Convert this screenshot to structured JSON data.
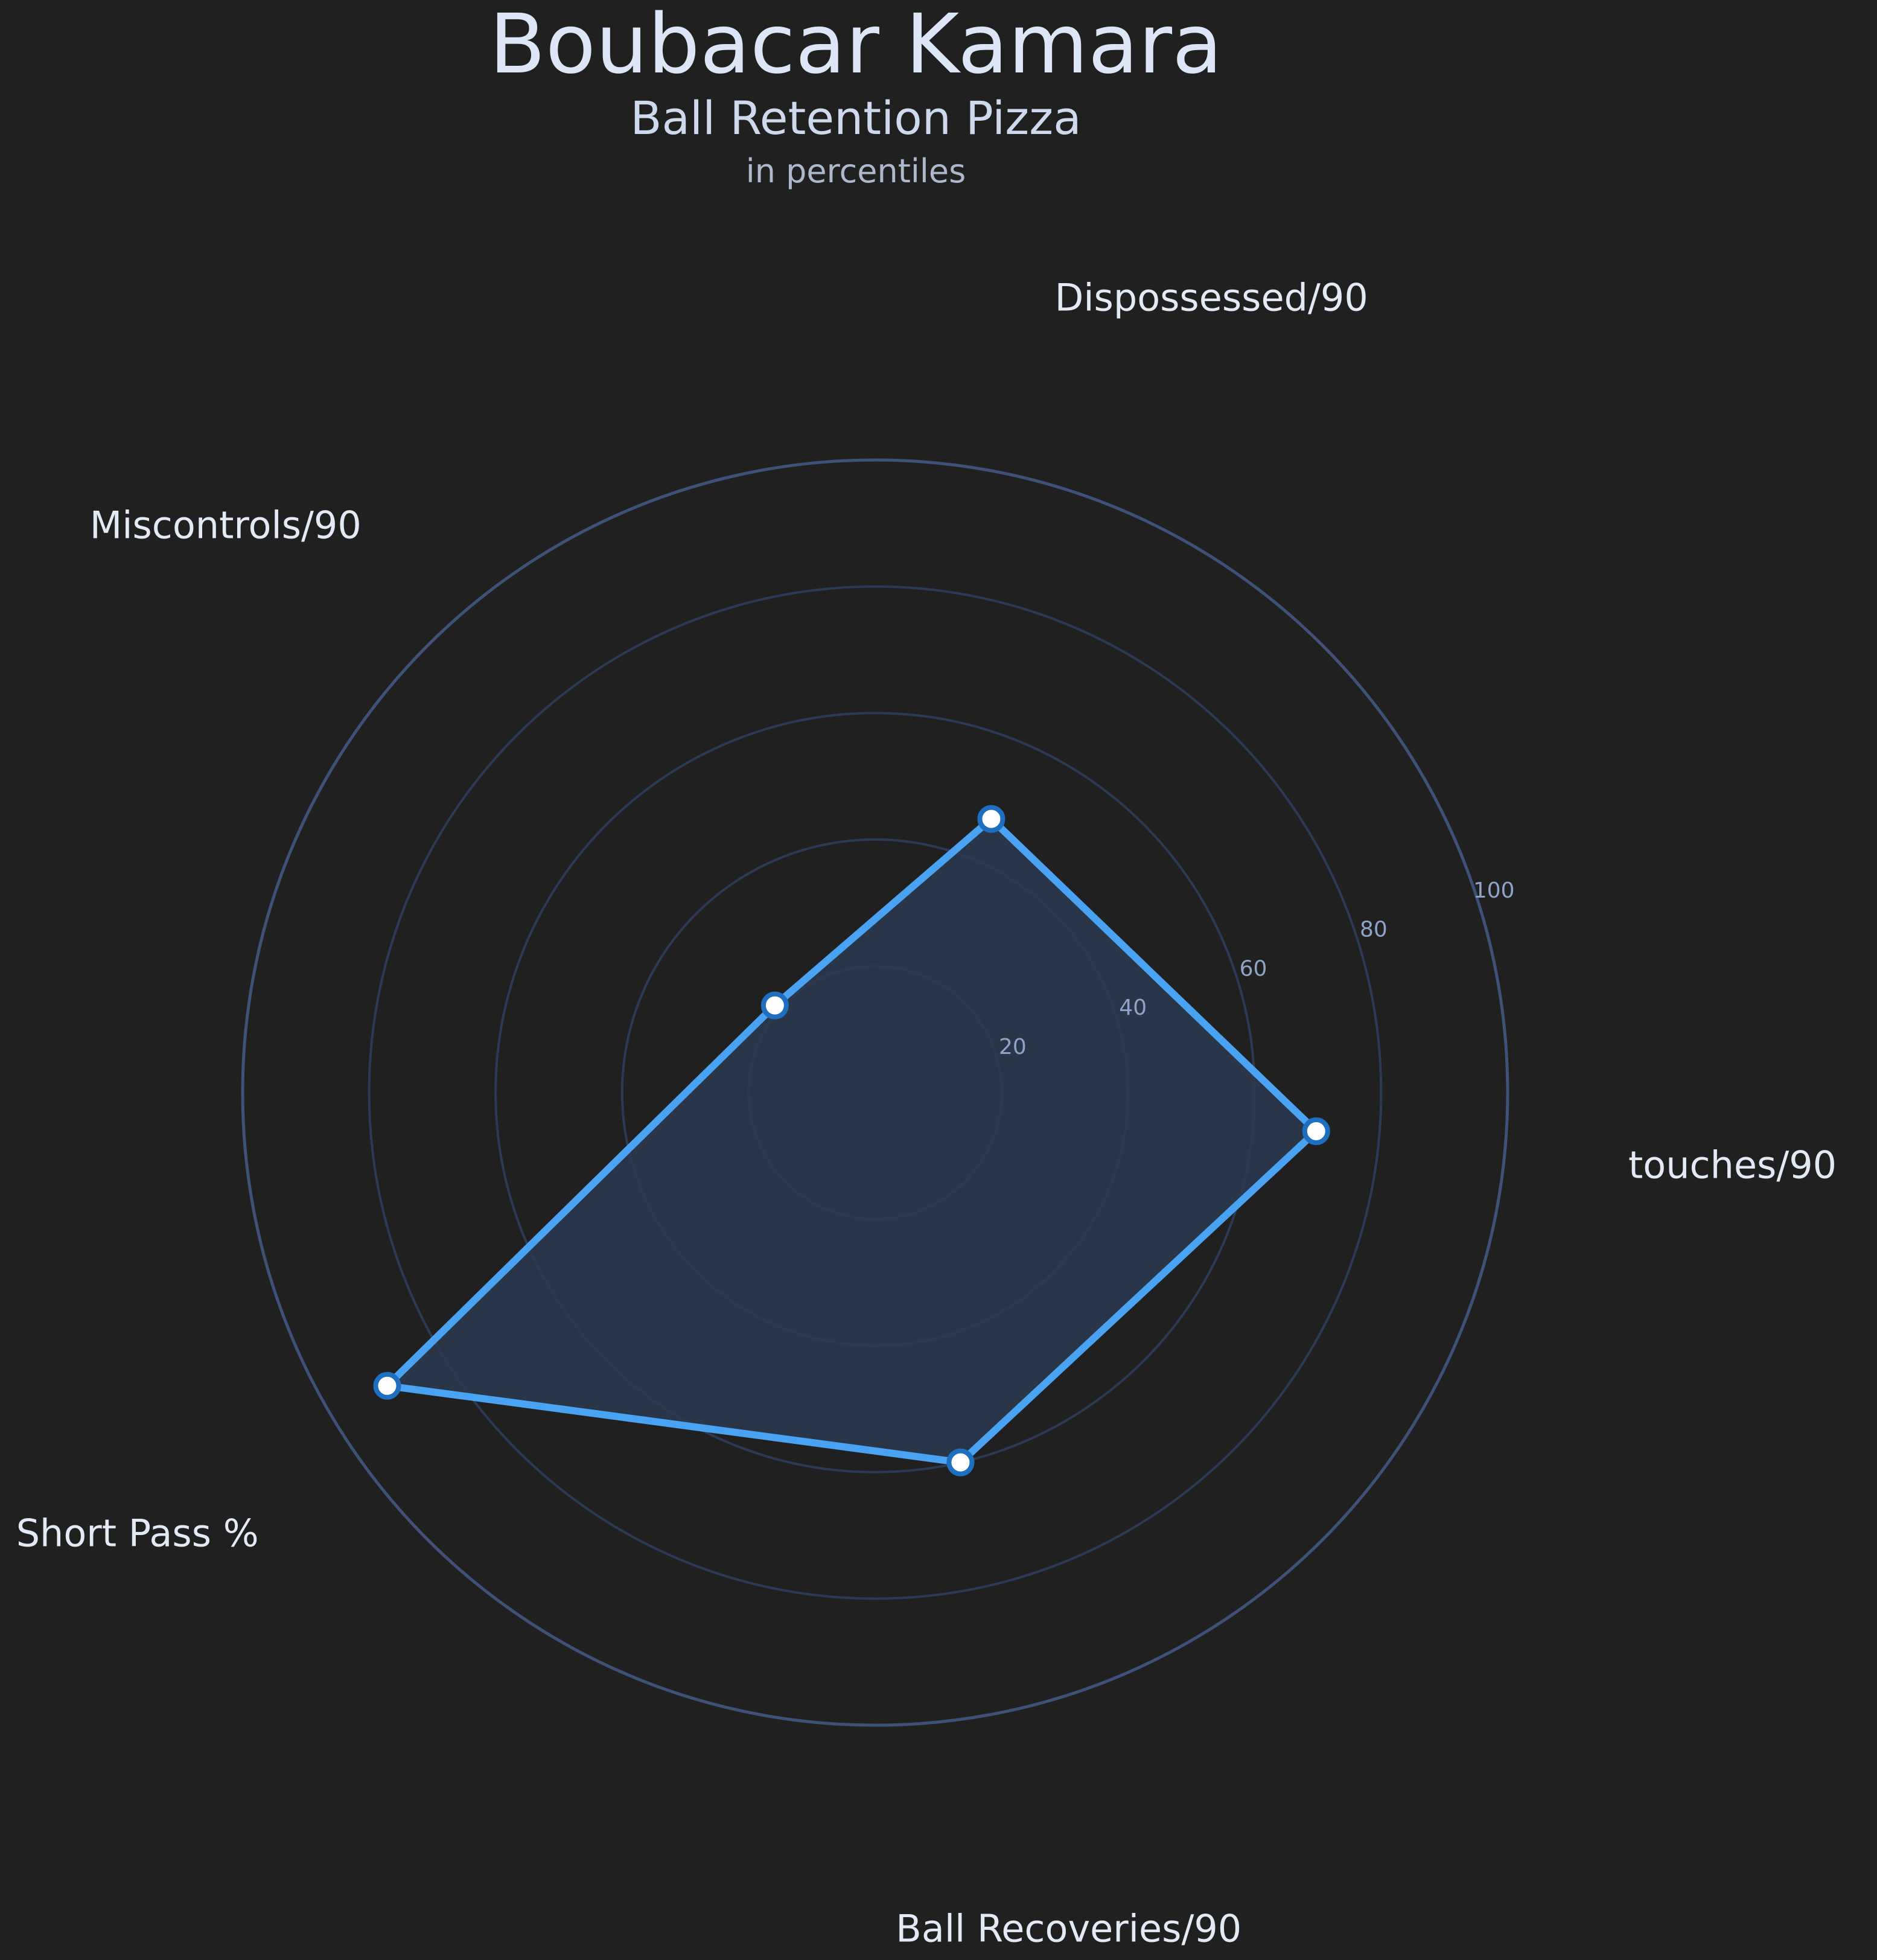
{
  "chart_data": {
    "type": "radar",
    "title": "Boubacar Kamara",
    "subtitle": "Ball Retention Pizza",
    "note": "in percentiles",
    "categories": [
      "Dispossessed/90",
      "touches/90",
      "Ball Recoveries/90",
      "Short Pass %",
      "Miscontrols/90"
    ],
    "values": [
      47,
      70,
      60,
      90,
      21
    ],
    "rmax": 100,
    "radial_ticks": [
      20,
      40,
      60,
      80,
      100
    ],
    "grid": true,
    "legend": "none",
    "colors": {
      "background": "#202020",
      "line": "#4aa3f2",
      "fill": "#2b3a50",
      "grid_inner": "#2c3a55",
      "grid_outer": "#3f5178",
      "marker_fill": "#ffffff",
      "marker_edge": "#1f6fc1"
    }
  }
}
